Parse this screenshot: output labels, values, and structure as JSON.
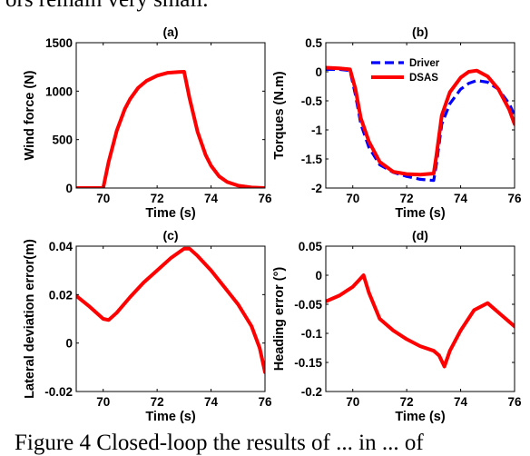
{
  "page": {
    "top_text": "ors remain very small.",
    "caption_text": "Figure 4  Closed-loop the results of ... in ... of"
  },
  "chart_data": [
    {
      "type": "line",
      "title": "(a)",
      "xlabel": "Time (s)",
      "ylabel": "Wind force (N)",
      "xlim": [
        69,
        76
      ],
      "ylim": [
        0,
        1500
      ],
      "xticks": [
        70,
        72,
        74,
        76
      ],
      "xtick_labels": [
        "70",
        "72",
        "74",
        "76"
      ],
      "yticks": [
        0,
        500,
        1000,
        1500
      ],
      "ytick_labels": [
        "0",
        "500",
        "1000",
        "1500"
      ],
      "series": [
        {
          "color": "#ff0000",
          "dashed": false,
          "x": [
            69,
            69.5,
            70,
            70.2,
            70.5,
            70.8,
            71,
            71.3,
            71.6,
            72,
            72.4,
            72.8,
            73,
            73.2,
            73.5,
            73.8,
            74,
            74.3,
            74.6,
            75,
            75.5,
            76
          ],
          "y": [
            0,
            0,
            0,
            270,
            590,
            815,
            920,
            1035,
            1105,
            1160,
            1190,
            1198,
            1200,
            930,
            580,
            340,
            230,
            120,
            62,
            25,
            6,
            0
          ]
        }
      ]
    },
    {
      "type": "line",
      "title": "(b)",
      "xlabel": "Time (s)",
      "ylabel": "Torques (N.m)",
      "xlim": [
        69,
        76
      ],
      "ylim": [
        -2,
        0.5
      ],
      "xticks": [
        70,
        72,
        74,
        76
      ],
      "xtick_labels": [
        "70",
        "72",
        "74",
        "76"
      ],
      "yticks": [
        0.5,
        0,
        -0.5,
        -1,
        -1.5,
        -2
      ],
      "ytick_labels": [
        "0.5",
        "0",
        "-0.5",
        "-1",
        "-1.5",
        "-2"
      ],
      "legend_position": "upper-center",
      "series": [
        {
          "name": "Driver",
          "color": "#0000ff",
          "dashed": true,
          "x": [
            69,
            69.5,
            69.9,
            70.1,
            70.3,
            70.6,
            71,
            71.5,
            72,
            72.5,
            73,
            73.1,
            73.3,
            73.6,
            74,
            74.3,
            74.6,
            75,
            75.4,
            75.8,
            76
          ],
          "y": [
            0.04,
            0.04,
            0.02,
            -0.4,
            -0.9,
            -1.3,
            -1.6,
            -1.73,
            -1.8,
            -1.85,
            -1.87,
            -1.6,
            -0.9,
            -0.55,
            -0.3,
            -0.2,
            -0.15,
            -0.18,
            -0.3,
            -0.55,
            -0.75
          ]
        },
        {
          "name": "DSAS",
          "color": "#ff0000",
          "dashed": false,
          "x": [
            69,
            69.5,
            69.9,
            70.1,
            70.3,
            70.6,
            71,
            71.5,
            72,
            72.5,
            73,
            73.1,
            73.3,
            73.6,
            74,
            74.3,
            74.6,
            75,
            75.4,
            75.8,
            76
          ],
          "y": [
            0.07,
            0.06,
            0.04,
            -0.3,
            -0.8,
            -1.2,
            -1.55,
            -1.72,
            -1.76,
            -1.77,
            -1.75,
            -1.45,
            -0.75,
            -0.35,
            -0.1,
            0.0,
            0.02,
            -0.08,
            -0.3,
            -0.65,
            -0.9
          ]
        }
      ]
    },
    {
      "type": "line",
      "title": "(c)",
      "xlabel": "Time (s)",
      "ylabel": "Lateral deviation error(m)",
      "xlim": [
        69,
        76
      ],
      "ylim": [
        -0.02,
        0.04
      ],
      "xticks": [
        70,
        72,
        74,
        76
      ],
      "xtick_labels": [
        "70",
        "72",
        "74",
        "76"
      ],
      "yticks": [
        0.04,
        0.02,
        0,
        -0.02
      ],
      "ytick_labels": [
        "0.04",
        "0.02",
        "0",
        "-0.02"
      ],
      "series": [
        {
          "color": "#ff0000",
          "dashed": false,
          "x": [
            69,
            69.5,
            70,
            70.2,
            70.5,
            71,
            71.5,
            72,
            72.5,
            73,
            73.2,
            73.5,
            74,
            74.5,
            75,
            75.5,
            75.8,
            76
          ],
          "y": [
            0.0195,
            0.015,
            0.01,
            0.0095,
            0.0125,
            0.019,
            0.025,
            0.03,
            0.035,
            0.039,
            0.039,
            0.036,
            0.03,
            0.023,
            0.016,
            0.007,
            -0.002,
            -0.012
          ]
        }
      ]
    },
    {
      "type": "line",
      "title": "(d)",
      "xlabel": "Time (s)",
      "ylabel": "Heading error (°)",
      "xlim": [
        69,
        76
      ],
      "ylim": [
        -0.2,
        0.05
      ],
      "xticks": [
        70,
        72,
        74,
        76
      ],
      "xtick_labels": [
        "70",
        "72",
        "74",
        "76"
      ],
      "yticks": [
        0.05,
        0,
        -0.05,
        -0.1,
        -0.15,
        -0.2
      ],
      "ytick_labels": [
        "0.05",
        "0",
        "-0.05",
        "-0.1",
        "-0.15",
        "-0.2"
      ],
      "series": [
        {
          "color": "#ff0000",
          "dashed": false,
          "x": [
            69,
            69.5,
            70,
            70.2,
            70.4,
            70.6,
            71,
            71.5,
            72,
            72.5,
            73,
            73.2,
            73.4,
            73.6,
            74,
            74.5,
            75,
            75.5,
            76
          ],
          "y": [
            -0.045,
            -0.035,
            -0.02,
            -0.01,
            0.0,
            -0.03,
            -0.075,
            -0.095,
            -0.11,
            -0.122,
            -0.13,
            -0.138,
            -0.157,
            -0.13,
            -0.095,
            -0.06,
            -0.048,
            -0.068,
            -0.088
          ]
        }
      ]
    }
  ]
}
